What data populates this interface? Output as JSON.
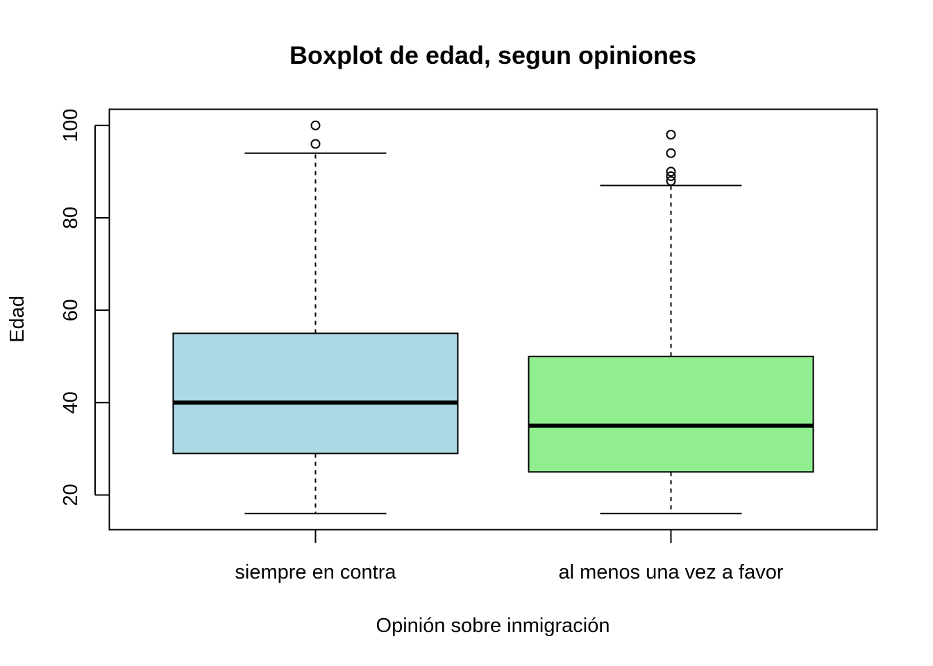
{
  "chart_data": {
    "type": "boxplot",
    "title": "Boxplot de edad, segun opiniones",
    "xlabel": "Opinión sobre inmigración",
    "ylabel": "Edad",
    "ylim": [
      12.5,
      103.5
    ],
    "yticks": [
      "20",
      "40",
      "60",
      "80",
      "100"
    ],
    "grid": false,
    "legend": "none",
    "categories": [
      "siempre en contra",
      "al menos una vez a favor"
    ],
    "boxes": [
      {
        "category": "siempre en contra",
        "whisker_low": 16,
        "q1": 29,
        "median": 40,
        "q3": 55,
        "whisker_high": 94,
        "outliers": [
          96,
          100
        ],
        "color": "#add8e6"
      },
      {
        "category": "al menos una vez a favor",
        "whisker_low": 16,
        "q1": 25,
        "median": 35,
        "q3": 50,
        "whisker_high": 87,
        "outliers": [
          88,
          89,
          90,
          94,
          98
        ],
        "color": "#90ee90"
      }
    ]
  }
}
